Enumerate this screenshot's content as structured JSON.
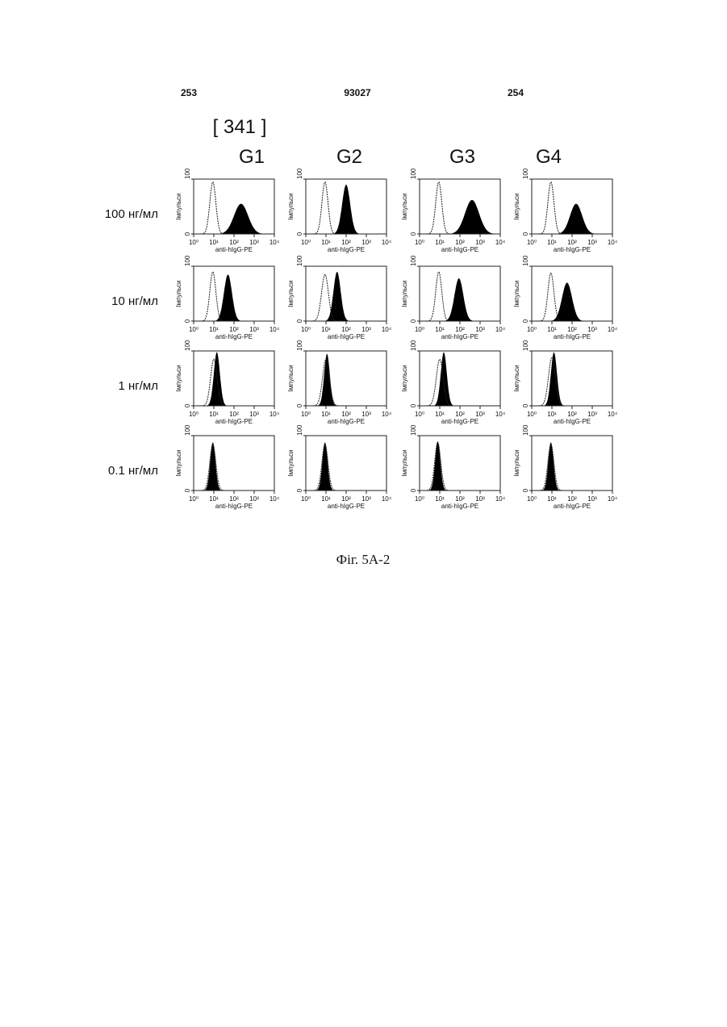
{
  "header": {
    "left": "253",
    "center": "93027",
    "right": "254"
  },
  "figure": {
    "number": "[ 341 ]",
    "columns": [
      "G1",
      "G2",
      "G3",
      "G4"
    ],
    "rows": [
      "100 нг/мл",
      "10 нг/мл",
      "1 нг/мл",
      "0.1 нг/мл"
    ],
    "axes": {
      "ylabel": "Імпульси",
      "xlabel": "anti-hIgG-PE",
      "xscale": "log",
      "xlim": [
        1,
        10000
      ],
      "xticks": [
        {
          "value": 1,
          "label": "10⁰"
        },
        {
          "value": 10,
          "label": "10¹"
        },
        {
          "value": 100,
          "label": "10²"
        },
        {
          "value": 1000,
          "label": "10³"
        },
        {
          "value": 10000,
          "label": "10⁴"
        }
      ],
      "ylim": [
        0,
        100
      ],
      "yticks": [
        0,
        100
      ]
    },
    "panels": [
      [
        {
          "filled": {
            "peak": 2.35,
            "width": 0.35,
            "height": 55
          },
          "open": {
            "peak": 0.95,
            "width": 0.15,
            "height": 95
          }
        },
        {
          "filled": {
            "peak": 2.0,
            "width": 0.2,
            "height": 90
          },
          "open": {
            "peak": 0.95,
            "width": 0.15,
            "height": 95
          }
        },
        {
          "filled": {
            "peak": 2.6,
            "width": 0.35,
            "height": 62
          },
          "open": {
            "peak": 0.95,
            "width": 0.15,
            "height": 95
          }
        },
        {
          "filled": {
            "peak": 2.2,
            "width": 0.3,
            "height": 55
          },
          "open": {
            "peak": 0.95,
            "width": 0.15,
            "height": 95
          }
        }
      ],
      [
        {
          "filled": {
            "peak": 1.7,
            "width": 0.2,
            "height": 85
          },
          "open": {
            "peak": 0.95,
            "width": 0.15,
            "height": 90
          }
        },
        {
          "filled": {
            "peak": 1.55,
            "width": 0.18,
            "height": 90
          },
          "open": {
            "peak": 0.95,
            "width": 0.17,
            "height": 85
          }
        },
        {
          "filled": {
            "peak": 1.95,
            "width": 0.22,
            "height": 78
          },
          "open": {
            "peak": 0.95,
            "width": 0.15,
            "height": 90
          }
        },
        {
          "filled": {
            "peak": 1.75,
            "width": 0.25,
            "height": 70
          },
          "open": {
            "peak": 0.95,
            "width": 0.15,
            "height": 88
          }
        }
      ],
      [
        {
          "filled": {
            "peak": 1.15,
            "width": 0.15,
            "height": 98
          },
          "open": {
            "peak": 1.0,
            "width": 0.16,
            "height": 85
          }
        },
        {
          "filled": {
            "peak": 1.05,
            "width": 0.14,
            "height": 95
          },
          "open": {
            "peak": 1.0,
            "width": 0.17,
            "height": 85
          }
        },
        {
          "filled": {
            "peak": 1.2,
            "width": 0.15,
            "height": 98
          },
          "open": {
            "peak": 1.0,
            "width": 0.17,
            "height": 85
          }
        },
        {
          "filled": {
            "peak": 1.1,
            "width": 0.15,
            "height": 98
          },
          "open": {
            "peak": 1.0,
            "width": 0.17,
            "height": 88
          }
        }
      ],
      [
        {
          "filled": {
            "peak": 0.95,
            "width": 0.13,
            "height": 88
          },
          "open": {
            "peak": 0.95,
            "width": 0.15,
            "height": 85
          }
        },
        {
          "filled": {
            "peak": 0.95,
            "width": 0.13,
            "height": 88
          },
          "open": {
            "peak": 0.95,
            "width": 0.15,
            "height": 85
          }
        },
        {
          "filled": {
            "peak": 0.9,
            "width": 0.13,
            "height": 90
          },
          "open": {
            "peak": 0.9,
            "width": 0.15,
            "height": 88
          }
        },
        {
          "filled": {
            "peak": 0.95,
            "width": 0.13,
            "height": 88
          },
          "open": {
            "peak": 0.95,
            "width": 0.15,
            "height": 85
          }
        }
      ]
    ],
    "caption": "Фіг. 5A-2"
  }
}
